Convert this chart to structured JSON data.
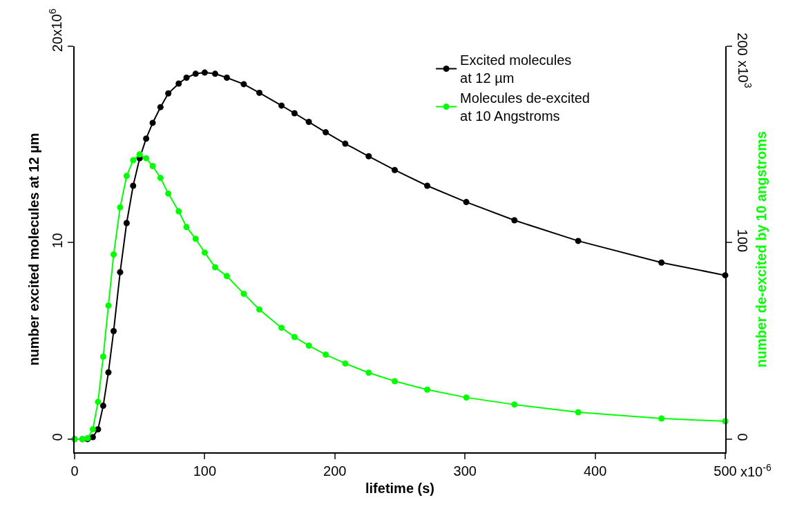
{
  "chart_data": {
    "type": "line",
    "xlabel": "lifetime (s)",
    "ylabel": "number excited molecules at 12 µm",
    "y2label": "number de-excited by 10 angstroms",
    "x": [
      0,
      6,
      10,
      14,
      18,
      22,
      26,
      30,
      35,
      40,
      45,
      50,
      55,
      60,
      66,
      72,
      80,
      86,
      93,
      100,
      108,
      117,
      130,
      142,
      159,
      169,
      180,
      193,
      208,
      226,
      246,
      271,
      301,
      338,
      387,
      451,
      500
    ],
    "series": [
      {
        "name": "Excited molecules\nat 12 µm",
        "color": "#000000",
        "values": [
          0,
          0,
          0,
          0.1,
          0.5,
          1.7,
          3.4,
          5.5,
          8.5,
          11.0,
          12.9,
          14.3,
          15.3,
          16.1,
          16.9,
          17.6,
          18.1,
          18.4,
          18.6,
          18.66,
          18.6,
          18.4,
          18.07,
          17.63,
          16.98,
          16.59,
          16.15,
          15.62,
          15.04,
          14.4,
          13.7,
          12.9,
          12.07,
          11.14,
          10.09,
          8.99,
          8.34
        ]
      },
      {
        "name": "Molecules de-excited\nat 10 Angstroms",
        "color": "#00ff00",
        "axis": "y2",
        "values": [
          0,
          0,
          0.5,
          5,
          19,
          42,
          68,
          94,
          118,
          134,
          142,
          145,
          143,
          139,
          133,
          125,
          116,
          108,
          102,
          95,
          87.5,
          83,
          74,
          66,
          56.7,
          52,
          47.6,
          43,
          38.5,
          33.8,
          29.5,
          25.2,
          21.2,
          17.6,
          13.7,
          10.5,
          9.1
        ]
      }
    ],
    "xlim": [
      0,
      500
    ],
    "xticks": [
      0,
      100,
      200,
      300,
      400,
      500
    ],
    "ylim": [
      -0.67,
      20
    ],
    "yticks": [
      0,
      10,
      20
    ],
    "y2lim": [
      -6.7,
      200
    ],
    "y2ticks": [
      0,
      100,
      200
    ],
    "annotations": [
      "x10$^{-6}$",
      "x10$^{6}$",
      "x10$^{3}$"
    ],
    "marker": "circle",
    "line_style": "solid",
    "legend": "top right"
  }
}
